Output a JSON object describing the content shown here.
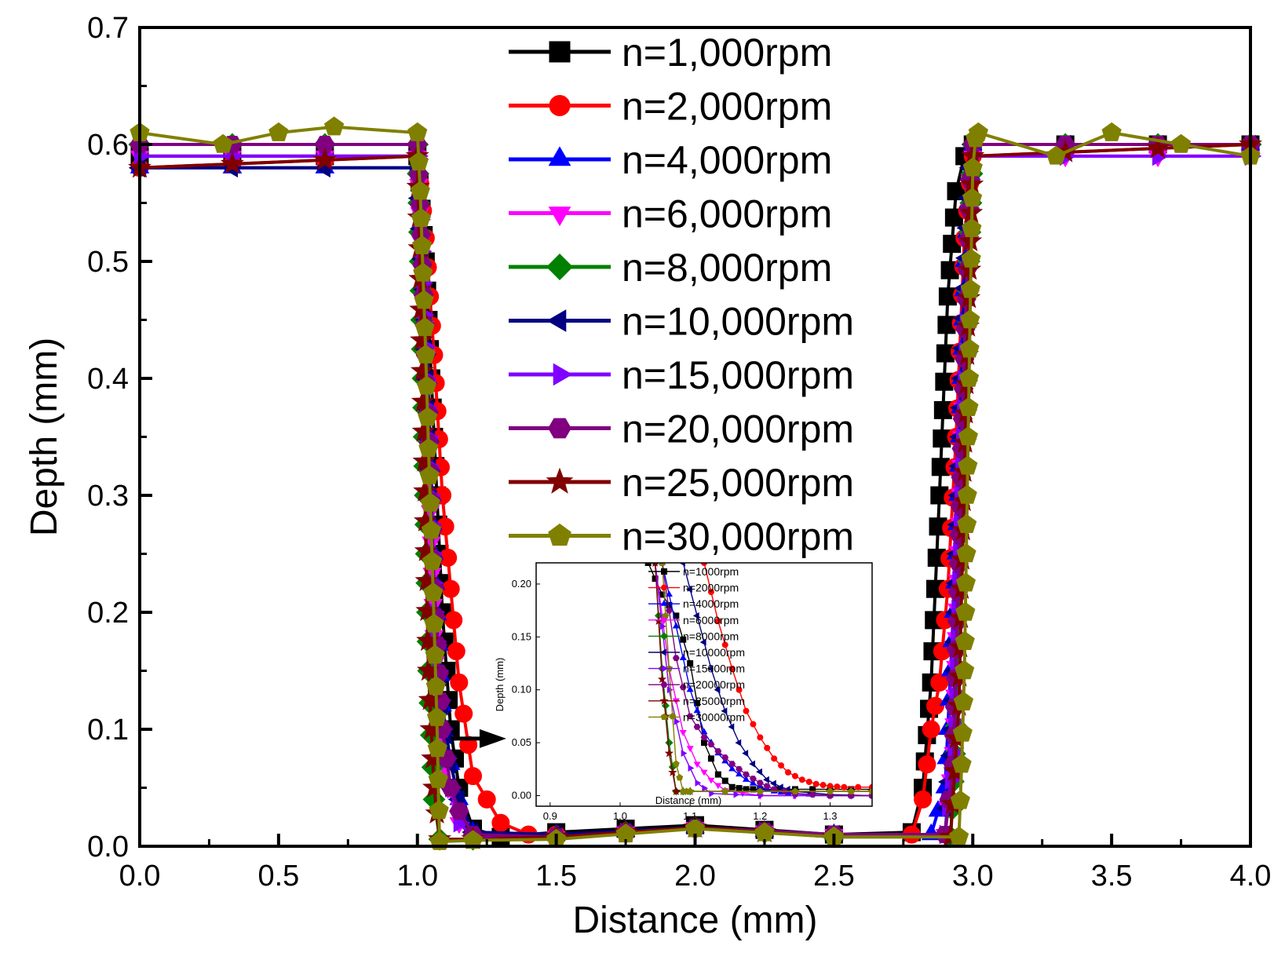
{
  "chart_data": {
    "type": "line",
    "title": "",
    "xlabel": "Distance (mm)",
    "ylabel": "Depth (mm)",
    "xlim": [
      0,
      4
    ],
    "ylim": [
      0,
      0.7
    ],
    "xticks": [
      "0.0",
      "0.5",
      "1.0",
      "1.5",
      "2.0",
      "2.5",
      "3.0",
      "3.5",
      "4.0"
    ],
    "yticks": [
      "0.0",
      "0.1",
      "0.2",
      "0.3",
      "0.4",
      "0.5",
      "0.6",
      "0.7"
    ],
    "legend_position": "top-center",
    "series": [
      {
        "name": "n=1,000rpm",
        "color": "#000000",
        "marker": "square",
        "x": [
          0,
          1.0,
          1.03,
          1.06,
          1.09,
          1.12,
          1.15,
          1.2,
          1.3,
          1.5,
          2.0,
          2.5,
          2.78,
          2.82,
          2.85,
          2.88,
          2.91,
          2.94,
          2.97,
          3.0,
          4.0
        ],
        "y": [
          0.59,
          0.59,
          0.5,
          0.35,
          0.2,
          0.1,
          0.05,
          0.015,
          0.008,
          0.012,
          0.018,
          0.01,
          0.012,
          0.05,
          0.14,
          0.3,
          0.47,
          0.56,
          0.59,
          0.6,
          0.6
        ]
      },
      {
        "name": "n=2,000rpm",
        "color": "#ff0000",
        "marker": "circle",
        "x": [
          0,
          1.0,
          1.03,
          1.06,
          1.09,
          1.12,
          1.15,
          1.2,
          1.3,
          1.4,
          1.5,
          2.0,
          2.5,
          2.78,
          2.82,
          2.85,
          2.88,
          2.91,
          2.94,
          2.97,
          3.0,
          4.0
        ],
        "y": [
          0.58,
          0.59,
          0.52,
          0.42,
          0.3,
          0.22,
          0.14,
          0.06,
          0.02,
          0.01,
          0.01,
          0.015,
          0.01,
          0.01,
          0.04,
          0.1,
          0.14,
          0.22,
          0.35,
          0.52,
          0.59,
          0.6
        ]
      },
      {
        "name": "n=4,000rpm",
        "color": "#0000ff",
        "marker": "triangle-up",
        "x": [
          0,
          1.0,
          1.03,
          1.06,
          1.09,
          1.12,
          1.15,
          1.2,
          1.5,
          2.0,
          2.5,
          2.85,
          2.9,
          2.94,
          2.97,
          3.0,
          4.0
        ],
        "y": [
          0.58,
          0.58,
          0.45,
          0.25,
          0.12,
          0.07,
          0.04,
          0.012,
          0.01,
          0.016,
          0.01,
          0.01,
          0.05,
          0.25,
          0.5,
          0.6,
          0.6
        ]
      },
      {
        "name": "n=6,000rpm",
        "color": "#ff00ff",
        "marker": "triangle-down",
        "x": [
          0,
          1.0,
          1.03,
          1.06,
          1.08,
          1.11,
          1.15,
          1.2,
          1.5,
          2.0,
          2.5,
          2.9,
          2.93,
          2.96,
          2.99,
          3.0,
          4.0
        ],
        "y": [
          0.59,
          0.59,
          0.42,
          0.18,
          0.09,
          0.05,
          0.02,
          0.008,
          0.008,
          0.016,
          0.01,
          0.01,
          0.08,
          0.35,
          0.57,
          0.59,
          0.59
        ]
      },
      {
        "name": "n=8,000rpm",
        "color": "#008000",
        "marker": "diamond",
        "x": [
          0,
          1.0,
          1.02,
          1.04,
          1.06,
          1.08,
          1.2,
          1.5,
          2.0,
          2.5,
          2.92,
          2.95,
          2.98,
          3.0,
          4.0
        ],
        "y": [
          0.6,
          0.6,
          0.4,
          0.15,
          0.04,
          0.006,
          0.006,
          0.008,
          0.016,
          0.008,
          0.008,
          0.15,
          0.45,
          0.6,
          0.6
        ]
      },
      {
        "name": "n=10,000rpm",
        "color": "#000080",
        "marker": "triangle-left",
        "x": [
          0,
          1.0,
          1.03,
          1.06,
          1.09,
          1.12,
          1.15,
          1.2,
          1.5,
          2.0,
          2.5,
          2.9,
          2.93,
          2.96,
          2.99,
          3.0,
          4.0
        ],
        "y": [
          0.58,
          0.58,
          0.45,
          0.22,
          0.12,
          0.07,
          0.04,
          0.012,
          0.01,
          0.016,
          0.01,
          0.01,
          0.1,
          0.4,
          0.58,
          0.6,
          0.6
        ]
      },
      {
        "name": "n=15,000rpm",
        "color": "#8000ff",
        "marker": "triangle-right",
        "x": [
          0,
          1.0,
          1.03,
          1.06,
          1.09,
          1.12,
          1.15,
          1.2,
          1.5,
          2.0,
          2.5,
          2.9,
          2.93,
          2.96,
          2.99,
          3.0,
          4.0
        ],
        "y": [
          0.59,
          0.59,
          0.4,
          0.2,
          0.1,
          0.05,
          0.02,
          0.008,
          0.008,
          0.016,
          0.01,
          0.01,
          0.08,
          0.35,
          0.57,
          0.59,
          0.59
        ]
      },
      {
        "name": "n=20,000rpm",
        "color": "#800080",
        "marker": "hexagon",
        "x": [
          0,
          1.0,
          1.03,
          1.06,
          1.09,
          1.12,
          1.15,
          1.2,
          1.5,
          2.0,
          2.5,
          2.9,
          2.93,
          2.96,
          2.99,
          3.0,
          4.0
        ],
        "y": [
          0.6,
          0.6,
          0.42,
          0.22,
          0.1,
          0.05,
          0.03,
          0.01,
          0.008,
          0.016,
          0.01,
          0.01,
          0.07,
          0.34,
          0.57,
          0.6,
          0.6
        ]
      },
      {
        "name": "n=25,000rpm",
        "color": "#800000",
        "marker": "star",
        "x": [
          0,
          1.0,
          1.02,
          1.04,
          1.06,
          1.08,
          1.2,
          1.5,
          2.0,
          2.5,
          2.92,
          2.95,
          2.98,
          3.0,
          4.0
        ],
        "y": [
          0.58,
          0.59,
          0.38,
          0.15,
          0.05,
          0.006,
          0.006,
          0.008,
          0.016,
          0.008,
          0.008,
          0.12,
          0.42,
          0.59,
          0.6
        ]
      },
      {
        "name": "n=30,000rpm",
        "color": "#808000",
        "marker": "pentagon",
        "x": [
          0,
          0.3,
          0.5,
          0.7,
          1.0,
          1.01,
          1.02,
          1.03,
          1.04,
          1.05,
          1.06,
          1.07,
          1.08,
          1.2,
          1.5,
          2.0,
          2.5,
          2.95,
          2.96,
          2.97,
          2.98,
          2.99,
          3.0,
          3.01,
          3.02,
          3.3,
          3.5,
          4.0
        ],
        "y": [
          0.61,
          0.6,
          0.61,
          0.615,
          0.61,
          0.56,
          0.49,
          0.42,
          0.34,
          0.27,
          0.19,
          0.11,
          0.004,
          0.005,
          0.006,
          0.015,
          0.008,
          0.008,
          0.07,
          0.15,
          0.3,
          0.45,
          0.58,
          0.605,
          0.61,
          0.59,
          0.61,
          0.59
        ]
      }
    ],
    "annotation_arrow": {
      "from": [
        1.12,
        0.092
      ],
      "to": [
        1.32,
        0.092
      ]
    },
    "inset": {
      "xlabel": "Distance (mm)",
      "ylabel": "Depth (mm)",
      "xlim": [
        0.88,
        1.36
      ],
      "ylim": [
        -0.01,
        0.22
      ],
      "xticks": [
        "0.9",
        "1.0",
        "1.1",
        "1.2",
        "1.3"
      ],
      "yticks": [
        "0.00",
        "0.05",
        "0.10",
        "0.15",
        "0.20"
      ],
      "legend": [
        "n=1000rpm",
        "n=2000rpm",
        "n=4000rpm",
        "n=6000rpm",
        "n=8000rpm",
        "n=10000rpm",
        "n=15000rpm",
        "n=20000rpm",
        "n=25000rpm",
        "n=30000rpm"
      ],
      "series": [
        {
          "name": "n=1000rpm",
          "color": "#000000",
          "x": [
            1.04,
            1.06,
            1.08,
            1.1,
            1.12,
            1.14,
            1.16,
            1.18,
            1.2,
            1.25,
            1.3,
            1.36
          ],
          "y": [
            0.22,
            0.19,
            0.17,
            0.125,
            0.05,
            0.02,
            0.008,
            0.006,
            0.006,
            0.006,
            0.006,
            0.006
          ]
        },
        {
          "name": "n=2000rpm",
          "color": "#ff0000",
          "x": [
            1.12,
            1.14,
            1.16,
            1.18,
            1.2,
            1.22,
            1.24,
            1.26,
            1.28,
            1.3,
            1.32,
            1.36
          ],
          "y": [
            0.22,
            0.165,
            0.12,
            0.08,
            0.055,
            0.035,
            0.022,
            0.015,
            0.011,
            0.009,
            0.008,
            0.008
          ]
        },
        {
          "name": "n=4000rpm",
          "color": "#0000ff",
          "x": [
            1.06,
            1.08,
            1.1,
            1.12,
            1.14,
            1.16,
            1.18,
            1.2,
            1.22,
            1.24,
            1.3,
            1.36
          ],
          "y": [
            0.22,
            0.16,
            0.1,
            0.06,
            0.04,
            0.025,
            0.015,
            0.008,
            0.004,
            0.002,
            0.0,
            0.0
          ]
        },
        {
          "name": "n=6000rpm",
          "color": "#ff00ff",
          "x": [
            1.05,
            1.07,
            1.09,
            1.11,
            1.13,
            1.15,
            1.2,
            1.3,
            1.36
          ],
          "y": [
            0.22,
            0.12,
            0.06,
            0.03,
            0.015,
            0.005,
            0.0,
            0.0,
            0.0
          ]
        },
        {
          "name": "n=8000rpm",
          "color": "#008000",
          "x": [
            1.05,
            1.06,
            1.07,
            1.08,
            1.1,
            1.2,
            1.3,
            1.36
          ],
          "y": [
            0.22,
            0.12,
            0.05,
            0.004,
            0.004,
            0.004,
            0.004,
            0.004
          ]
        },
        {
          "name": "n=10000rpm",
          "color": "#000080",
          "x": [
            1.09,
            1.11,
            1.13,
            1.15,
            1.17,
            1.19,
            1.21,
            1.23,
            1.25,
            1.3,
            1.36
          ],
          "y": [
            0.22,
            0.17,
            0.12,
            0.08,
            0.05,
            0.03,
            0.015,
            0.008,
            0.004,
            0.001,
            0.0
          ]
        },
        {
          "name": "n=15000rpm",
          "color": "#8000ff",
          "x": [
            1.05,
            1.07,
            1.09,
            1.11,
            1.13,
            1.2,
            1.3,
            1.36
          ],
          "y": [
            0.22,
            0.1,
            0.04,
            0.012,
            0.002,
            0.0,
            0.0,
            0.0
          ]
        },
        {
          "name": "n=20000rpm",
          "color": "#800080",
          "x": [
            1.06,
            1.08,
            1.1,
            1.12,
            1.14,
            1.16,
            1.18,
            1.2,
            1.22,
            1.25,
            1.3,
            1.36
          ],
          "y": [
            0.22,
            0.13,
            0.075,
            0.055,
            0.042,
            0.03,
            0.02,
            0.012,
            0.006,
            0.002,
            0.0,
            0.0
          ]
        },
        {
          "name": "n=25000rpm",
          "color": "#800000",
          "x": [
            1.05,
            1.06,
            1.07,
            1.08,
            1.1,
            1.2,
            1.3,
            1.36
          ],
          "y": [
            0.22,
            0.11,
            0.04,
            0.004,
            0.004,
            0.004,
            0.004,
            0.004
          ]
        },
        {
          "name": "n=30000rpm",
          "color": "#808000",
          "x": [
            1.06,
            1.07,
            1.08,
            1.09,
            1.1,
            1.2,
            1.3,
            1.36
          ],
          "y": [
            0.22,
            0.12,
            0.03,
            0.004,
            0.004,
            0.004,
            0.004,
            0.004
          ]
        }
      ]
    }
  }
}
